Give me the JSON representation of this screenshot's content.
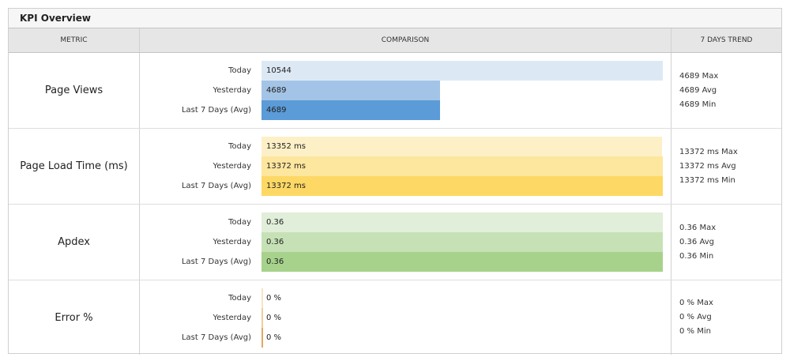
{
  "panel": {
    "title": "KPI Overview"
  },
  "columns": {
    "metric": "METRIC",
    "comparison": "COMPARISON",
    "trend": "7 DAYS TREND"
  },
  "period_labels": [
    "Today",
    "Yesterday",
    "Last 7 Days (Avg)"
  ],
  "rows": [
    {
      "metric": "Page Views",
      "bars": [
        {
          "label": "Today",
          "value": "10544",
          "fraction": 1.0,
          "color": "#dce9f5"
        },
        {
          "label": "Yesterday",
          "value": "4689",
          "fraction": 0.4447,
          "color": "#a3c4e6"
        },
        {
          "label": "Last 7 Days (Avg)",
          "value": "4689",
          "fraction": 0.4447,
          "color": "#5b9bd7"
        }
      ],
      "trend": {
        "max": "4689 Max",
        "avg": "4689 Avg",
        "min": "4689 Min"
      }
    },
    {
      "metric": "Page Load Time (ms)",
      "bars": [
        {
          "label": "Today",
          "value": "13352 ms",
          "fraction": 0.9985,
          "color": "#fdf0c7"
        },
        {
          "label": "Yesterday",
          "value": "13372 ms",
          "fraction": 1.0,
          "color": "#fde69e"
        },
        {
          "label": "Last 7 Days (Avg)",
          "value": "13372 ms",
          "fraction": 1.0,
          "color": "#fdd865"
        }
      ],
      "trend": {
        "max": "13372 ms Max",
        "avg": "13372 ms Avg",
        "min": "13372 ms Min"
      }
    },
    {
      "metric": "Apdex",
      "bars": [
        {
          "label": "Today",
          "value": "0.36",
          "fraction": 1.0,
          "color": "#e1eed9"
        },
        {
          "label": "Yesterday",
          "value": "0.36",
          "fraction": 1.0,
          "color": "#c7e1b6"
        },
        {
          "label": "Last 7 Days (Avg)",
          "value": "0.36",
          "fraction": 1.0,
          "color": "#a7d28c"
        }
      ],
      "trend": {
        "max": "0.36 Max",
        "avg": "0.36 Avg",
        "min": "0.36 Min"
      }
    },
    {
      "metric": "Error %",
      "bars": [
        {
          "label": "Today",
          "value": "0 %",
          "fraction": 0,
          "color": "#f7e3c7"
        },
        {
          "label": "Yesterday",
          "value": "0 %",
          "fraction": 0,
          "color": "#efcfa0"
        },
        {
          "label": "Last 7 Days (Avg)",
          "value": "0 %",
          "fraction": 0,
          "color": "#e0a860"
        }
      ],
      "trend": {
        "max": "0 % Max",
        "avg": "0 % Avg",
        "min": "0 % Min"
      }
    }
  ]
}
